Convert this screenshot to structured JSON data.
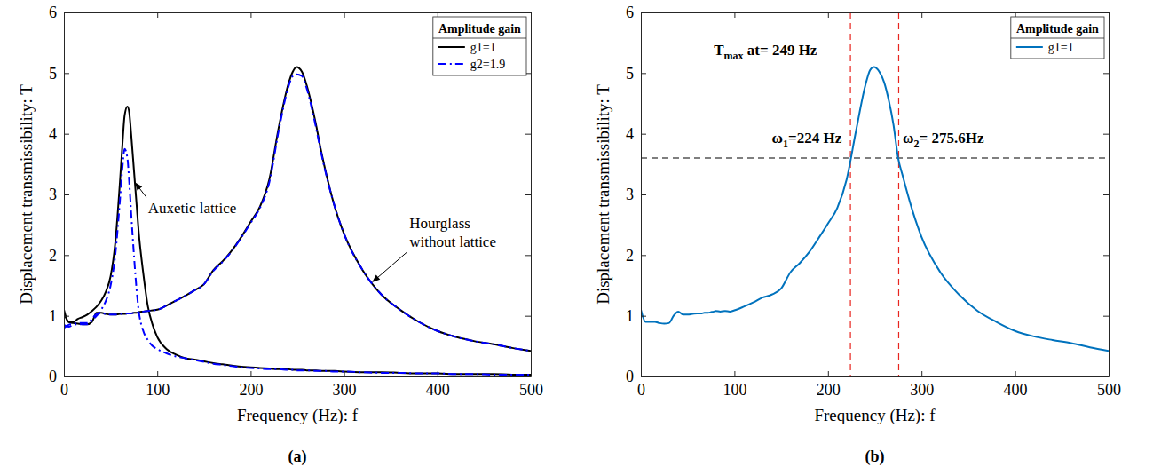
{
  "chart_data": [
    {
      "type": "line",
      "panel_label": "(a)",
      "xlabel": "Frequency (Hz): f",
      "ylabel": "Displacement transmissibility: T",
      "xlim": [
        0,
        500
      ],
      "xticks": [
        0,
        100,
        200,
        300,
        400,
        500
      ],
      "ylim": [
        0,
        6
      ],
      "yticks": [
        0,
        1,
        2,
        3,
        4,
        5,
        6
      ],
      "legend": "upper right",
      "legend_title": "Amplitude gain",
      "x": [
        0,
        5,
        10,
        15,
        20,
        25,
        30,
        35,
        40,
        45,
        50,
        55,
        60,
        63,
        65,
        68,
        70,
        72,
        75,
        78,
        80,
        85,
        90,
        95,
        100,
        110,
        120,
        130,
        140,
        150,
        160,
        170,
        180,
        190,
        200,
        210,
        220,
        230,
        240,
        245,
        249,
        255,
        260,
        265,
        270,
        275,
        280,
        290,
        300,
        320,
        340,
        360,
        380,
        400,
        420,
        440,
        460,
        480,
        500
      ],
      "series": [
        {
          "name": "g1=1",
          "color": "#000000",
          "line_style": "solid",
          "curves": [
            {
              "values": [
                1.1,
                0.9,
                0.9,
                0.95,
                0.98,
                1.02,
                1.08,
                1.15,
                1.25,
                1.4,
                1.65,
                2.2,
                3.2,
                3.9,
                4.3,
                4.45,
                4.35,
                4.0,
                3.4,
                2.8,
                2.4,
                1.7,
                1.15,
                0.85,
                0.65,
                0.45,
                0.36,
                0.3,
                0.28,
                0.25,
                0.22,
                0.2,
                0.18,
                0.16,
                0.15,
                0.14,
                0.13,
                0.12,
                0.12,
                0.11,
                0.11,
                0.11,
                0.1,
                0.1,
                0.1,
                0.09,
                0.09,
                0.09,
                0.08,
                0.07,
                0.07,
                0.06,
                0.05,
                0.05,
                0.04,
                0.04,
                0.04,
                0.03,
                0.03
              ]
            },
            {
              "values": [
                1.05,
                0.9,
                0.88,
                0.87,
                0.86,
                0.86,
                0.9,
                1.05,
                1.05,
                1.03,
                1.02,
                1.02,
                1.03,
                1.03,
                1.03,
                1.04,
                1.04,
                1.04,
                1.05,
                1.05,
                1.06,
                1.07,
                1.08,
                1.09,
                1.1,
                1.17,
                1.25,
                1.33,
                1.42,
                1.52,
                1.75,
                1.9,
                2.08,
                2.3,
                2.55,
                2.8,
                3.25,
                4.1,
                4.8,
                5.02,
                5.1,
                5.02,
                4.8,
                4.5,
                4.15,
                3.75,
                3.4,
                2.8,
                2.35,
                1.75,
                1.35,
                1.1,
                0.9,
                0.75,
                0.65,
                0.58,
                0.53,
                0.47,
                0.42
              ]
            }
          ]
        },
        {
          "name": "g2=1.9",
          "color": "#0000FF",
          "line_style": "dashdot",
          "curves": [
            {
              "values": [
                0.8,
                0.85,
                0.87,
                0.88,
                0.88,
                0.88,
                0.92,
                1.0,
                1.1,
                1.25,
                1.5,
                2.0,
                2.9,
                3.5,
                3.75,
                3.6,
                3.2,
                2.7,
                2.0,
                1.4,
                1.1,
                0.75,
                0.6,
                0.5,
                0.45,
                0.38,
                0.33,
                0.3,
                0.27,
                0.24,
                0.21,
                0.19,
                0.17,
                0.15,
                0.14,
                0.13,
                0.12,
                0.12,
                0.11,
                0.11,
                0.1,
                0.1,
                0.1,
                0.1,
                0.09,
                0.09,
                0.09,
                0.08,
                0.08,
                0.07,
                0.06,
                0.06,
                0.05,
                0.05,
                0.04,
                0.04,
                0.03,
                0.03,
                0.03
              ]
            },
            {
              "values": [
                0.85,
                0.82,
                0.85,
                0.86,
                0.86,
                0.86,
                0.95,
                1.03,
                1.04,
                1.03,
                1.02,
                1.02,
                1.03,
                1.03,
                1.03,
                1.04,
                1.04,
                1.04,
                1.05,
                1.05,
                1.06,
                1.07,
                1.08,
                1.09,
                1.1,
                1.17,
                1.25,
                1.33,
                1.42,
                1.52,
                1.74,
                1.89,
                2.07,
                2.29,
                2.53,
                2.78,
                3.2,
                4.05,
                4.75,
                4.95,
                4.98,
                4.95,
                4.75,
                4.45,
                4.1,
                3.72,
                3.38,
                2.8,
                2.35,
                1.75,
                1.35,
                1.1,
                0.9,
                0.75,
                0.65,
                0.58,
                0.53,
                0.47,
                0.42
              ]
            }
          ]
        }
      ],
      "annotations": [
        {
          "text": "Auxetic lattice",
          "x": 90,
          "y": 2.7,
          "arrow_to": [
            76,
            3.2
          ]
        },
        {
          "text": "Hourglass without lattice",
          "x": 370,
          "y": 2.45,
          "arrow_to": [
            330,
            1.55
          ]
        }
      ]
    },
    {
      "type": "line",
      "panel_label": "(b)",
      "xlabel": "Frequency (Hz): f",
      "ylabel": "Displacement transmissibility: T",
      "xlim": [
        0,
        500
      ],
      "xticks": [
        0,
        100,
        200,
        300,
        400,
        500
      ],
      "ylim": [
        0,
        6
      ],
      "yticks": [
        0,
        1,
        2,
        3,
        4,
        5,
        6
      ],
      "legend": "upper right",
      "legend_title": "Amplitude gain",
      "x": [
        0,
        5,
        10,
        15,
        20,
        25,
        30,
        35,
        40,
        45,
        50,
        55,
        60,
        63,
        65,
        68,
        70,
        72,
        75,
        78,
        80,
        85,
        90,
        95,
        100,
        110,
        120,
        130,
        140,
        150,
        160,
        170,
        180,
        190,
        200,
        210,
        220,
        230,
        240,
        245,
        249,
        255,
        260,
        265,
        270,
        275,
        280,
        290,
        300,
        320,
        340,
        360,
        380,
        400,
        420,
        440,
        460,
        480,
        500
      ],
      "series": [
        {
          "name": "g1=1",
          "color": "#0072BD",
          "line_style": "solid",
          "values": [
            1.1,
            0.9,
            0.9,
            0.9,
            0.88,
            0.87,
            0.88,
            1.0,
            1.07,
            1.02,
            1.02,
            1.03,
            1.04,
            1.04,
            1.04,
            1.05,
            1.05,
            1.05,
            1.06,
            1.07,
            1.08,
            1.07,
            1.08,
            1.07,
            1.09,
            1.15,
            1.22,
            1.3,
            1.35,
            1.45,
            1.72,
            1.87,
            2.05,
            2.28,
            2.52,
            2.78,
            3.25,
            4.05,
            4.8,
            5.05,
            5.1,
            5.02,
            4.85,
            4.55,
            4.15,
            3.6,
            3.3,
            2.75,
            2.3,
            1.72,
            1.35,
            1.08,
            0.9,
            0.75,
            0.66,
            0.6,
            0.55,
            0.48,
            0.42
          ]
        }
      ],
      "reference_lines": [
        {
          "axis": "y",
          "value": 5.1,
          "color": "#000000",
          "line_style": "dashed"
        },
        {
          "axis": "y",
          "value": 3.6,
          "color": "#000000",
          "line_style": "dashed"
        },
        {
          "axis": "x",
          "value": 224,
          "color": "#E8251F",
          "line_style": "dashed"
        },
        {
          "axis": "x",
          "value": 275.6,
          "color": "#E8251F",
          "line_style": "dashed"
        }
      ],
      "annotations": [
        {
          "parts": [
            {
              "text": "T"
            },
            {
              "text": "max",
              "sub": true
            },
            {
              "text": " at= 249 Hz"
            }
          ],
          "x": 78,
          "y": 5.3
        },
        {
          "parts": [
            {
              "text": "ω"
            },
            {
              "text": "1",
              "sub": true
            },
            {
              "text": "=224 Hz"
            }
          ],
          "x": 140,
          "y": 3.85
        },
        {
          "parts": [
            {
              "text": "ω"
            },
            {
              "text": "2",
              "sub": true
            },
            {
              "text": "= 275.6Hz"
            }
          ],
          "x": 280,
          "y": 3.85
        }
      ]
    }
  ]
}
